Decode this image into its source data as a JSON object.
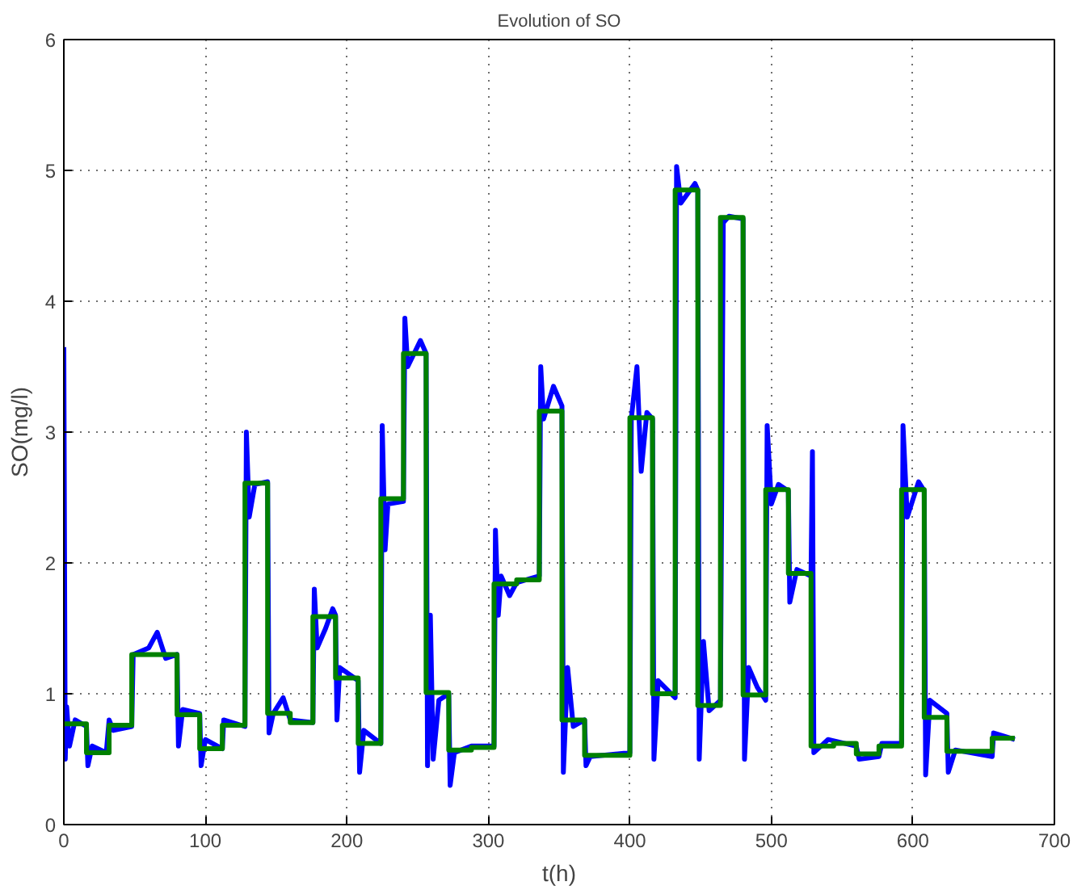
{
  "chart_data": {
    "type": "line",
    "title": "Evolution of SO",
    "xlabel": "t(h)",
    "ylabel": "SO(mg/l)",
    "xlim": [
      0,
      700
    ],
    "ylim": [
      0,
      6
    ],
    "xticks": [
      0,
      100,
      200,
      300,
      400,
      500,
      600,
      700
    ],
    "yticks": [
      0,
      1,
      2,
      3,
      4,
      5,
      6
    ],
    "grid": true,
    "marker": "none",
    "line_style": "solid",
    "series": [
      {
        "color": "#0000ff",
        "x": [
          0,
          1,
          2,
          4,
          8,
          16,
          17,
          20,
          30,
          32,
          35,
          48,
          49,
          60,
          66,
          72,
          80,
          81,
          84,
          96,
          97,
          100,
          112,
          113,
          128,
          129,
          131,
          135,
          144,
          145,
          148,
          155,
          160,
          176,
          177,
          179,
          185,
          190,
          192,
          193,
          195,
          208,
          209,
          212,
          224,
          225,
          227,
          229,
          240,
          241,
          243,
          252,
          256,
          257,
          259,
          261,
          265,
          272,
          273,
          276,
          288,
          304,
          305,
          307,
          309,
          315,
          320,
          336,
          337,
          339,
          346,
          352,
          353,
          356,
          360,
          368,
          369,
          372,
          400,
          401,
          405,
          408,
          412,
          416,
          417,
          420,
          432,
          433,
          436,
          446,
          448,
          449,
          452,
          456,
          464,
          466,
          470,
          480,
          481,
          484,
          490,
          496,
          497,
          500,
          505,
          512,
          513,
          518,
          528,
          529,
          530,
          540,
          560,
          562,
          576,
          578,
          592,
          593,
          596,
          604,
          608,
          609,
          612,
          624,
          625,
          630,
          656,
          657,
          672
        ],
        "values": [
          3.65,
          0.5,
          0.9,
          0.6,
          0.8,
          0.75,
          0.45,
          0.6,
          0.55,
          0.8,
          0.72,
          0.75,
          1.3,
          1.35,
          1.47,
          1.27,
          1.3,
          0.6,
          0.88,
          0.85,
          0.45,
          0.65,
          0.58,
          0.8,
          0.75,
          3.0,
          2.35,
          2.6,
          2.62,
          0.7,
          0.85,
          0.97,
          0.8,
          0.78,
          1.8,
          1.35,
          1.5,
          1.65,
          1.6,
          0.8,
          1.2,
          1.1,
          0.4,
          0.72,
          0.62,
          3.05,
          2.1,
          2.45,
          2.47,
          3.87,
          3.5,
          3.7,
          3.6,
          0.45,
          1.6,
          0.5,
          0.95,
          1.0,
          0.3,
          0.55,
          0.6,
          0.6,
          2.25,
          1.6,
          1.9,
          1.75,
          1.85,
          1.9,
          3.5,
          3.1,
          3.35,
          3.2,
          0.4,
          1.2,
          0.75,
          0.8,
          0.45,
          0.52,
          0.55,
          3.1,
          3.5,
          2.7,
          3.15,
          3.1,
          0.5,
          1.1,
          0.97,
          5.03,
          4.75,
          4.9,
          4.85,
          0.5,
          1.4,
          0.87,
          0.95,
          4.6,
          4.65,
          4.63,
          0.5,
          1.2,
          1.05,
          0.95,
          3.05,
          2.45,
          2.6,
          2.55,
          1.7,
          1.95,
          1.9,
          2.85,
          0.55,
          0.65,
          0.6,
          0.5,
          0.52,
          0.62,
          0.62,
          3.05,
          2.35,
          2.62,
          2.55,
          0.38,
          0.95,
          0.85,
          0.4,
          0.57,
          0.52,
          0.7,
          0.65
        ]
      },
      {
        "type": "step",
        "color": "#008000",
        "x": [
          0,
          16,
          32,
          48,
          80,
          96,
          112,
          128,
          144,
          160,
          176,
          192,
          208,
          224,
          240,
          256,
          272,
          288,
          304,
          320,
          336,
          352,
          368,
          400,
          416,
          432,
          448,
          464,
          480,
          496,
          512,
          528,
          544,
          560,
          576,
          592,
          608,
          624,
          656,
          672
        ],
        "values": [
          0.77,
          0.55,
          0.76,
          1.3,
          0.84,
          0.58,
          0.76,
          2.61,
          0.85,
          0.78,
          1.59,
          1.12,
          0.62,
          2.49,
          3.6,
          1.01,
          0.57,
          0.59,
          1.84,
          1.87,
          3.16,
          0.8,
          0.53,
          3.11,
          1.0,
          4.85,
          0.91,
          4.64,
          0.99,
          2.56,
          1.92,
          0.6,
          0.62,
          0.54,
          0.6,
          2.56,
          0.82,
          0.56,
          0.66,
          0.66
        ]
      }
    ]
  }
}
